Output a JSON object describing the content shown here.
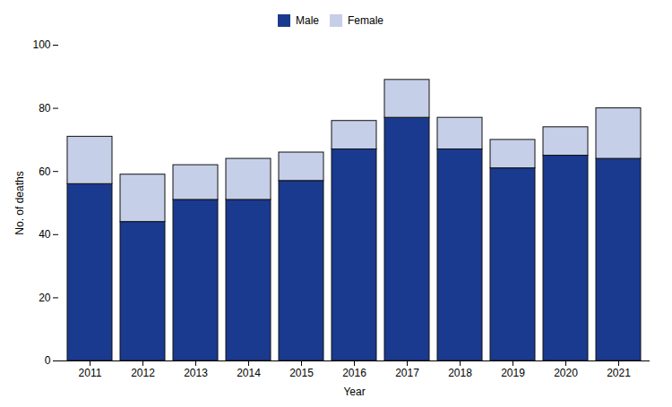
{
  "chart_data": {
    "type": "bar",
    "stacked": true,
    "categories": [
      "2011",
      "2012",
      "2013",
      "2014",
      "2015",
      "2016",
      "2017",
      "2018",
      "2019",
      "2020",
      "2021"
    ],
    "series": [
      {
        "name": "Male",
        "color": "#1a3a8f",
        "values": [
          56,
          44,
          51,
          51,
          57,
          67,
          77,
          67,
          61,
          65,
          64
        ]
      },
      {
        "name": "Female",
        "color": "#c5cfe8",
        "values": [
          15,
          15,
          11,
          13,
          9,
          9,
          12,
          10,
          9,
          9,
          16
        ]
      }
    ],
    "xlabel": "Year",
    "ylabel": "No. of deaths",
    "ylim": [
      0,
      100
    ],
    "yticks": [
      0,
      20,
      40,
      60,
      80,
      100
    ],
    "grid": false,
    "legend": "top"
  }
}
